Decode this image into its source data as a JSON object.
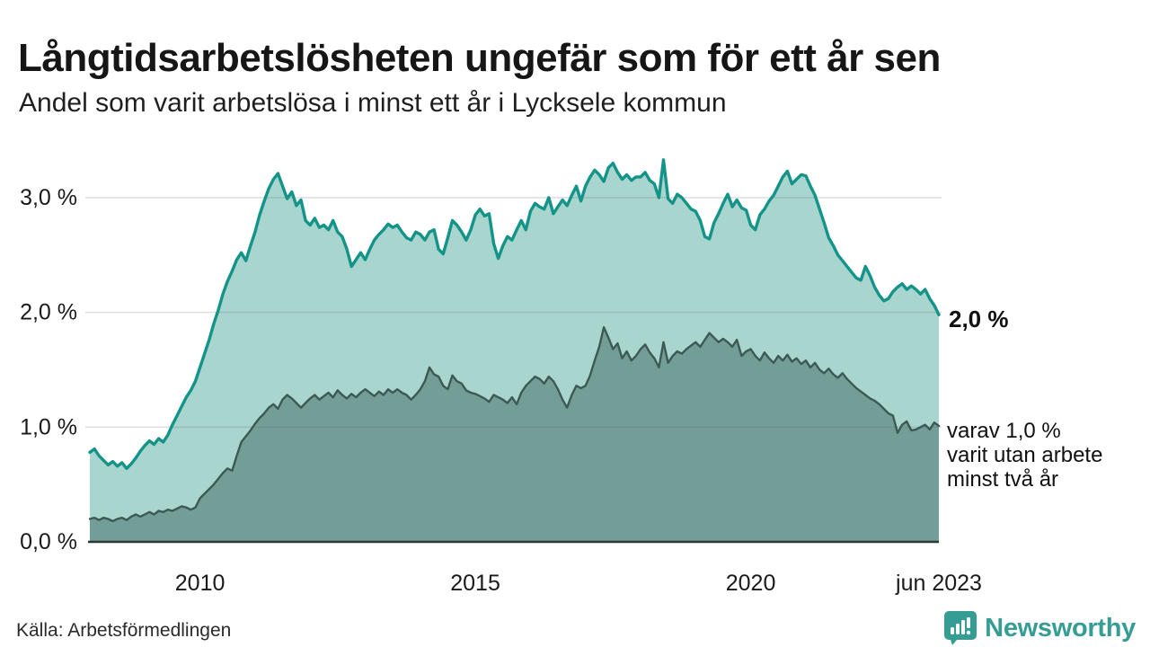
{
  "header": {
    "title": "Långtidsarbetslösheten ungefär som för ett år sen",
    "subtitle": "Andel som varit arbetslösa i minst ett år i Lycksele kommun"
  },
  "annotations": {
    "end_value_label": "2,0 %",
    "secondary_label": "varav 1,0 %\nvarit utan arbete\nminst två år"
  },
  "footer": {
    "source": "Källa: Arbetsförmedlingen",
    "brand": "Newsworthy"
  },
  "colors": {
    "line_primary": "#149489",
    "fill_primary": "#a8d5ce",
    "line_secondary": "#3d5954",
    "fill_secondary": "#739e97",
    "gridline": "rgba(100,112,122,0.22)",
    "baseline": "#2d3937",
    "tick_text": "#1a1a1a",
    "brand_teal": "#359d94"
  },
  "chart_data": {
    "type": "area",
    "frequency": "monthly",
    "x_range_estimate": [
      "2008-01",
      "2023-06"
    ],
    "ylim": [
      0,
      3.5
    ],
    "grid": true,
    "y_ticks": [
      {
        "value": 0,
        "label": "0,0 %"
      },
      {
        "value": 1,
        "label": "1,0 %"
      },
      {
        "value": 2,
        "label": "2,0 %"
      },
      {
        "value": 3,
        "label": "3,0 %"
      }
    ],
    "x_ticks": [
      {
        "t": 2010.0,
        "label": "2010"
      },
      {
        "t": 2015.0,
        "label": "2015"
      },
      {
        "t": 2020.0,
        "label": "2020"
      },
      {
        "t": 2023.417,
        "label": "jun 2023"
      }
    ],
    "series": [
      {
        "name": "Andel arbetslösa minst ett år",
        "end_value_pct": 2.0,
        "values": [
          0.78,
          0.81,
          0.75,
          0.71,
          0.67,
          0.7,
          0.66,
          0.69,
          0.64,
          0.68,
          0.73,
          0.79,
          0.84,
          0.88,
          0.85,
          0.9,
          0.87,
          0.93,
          1.02,
          1.1,
          1.18,
          1.26,
          1.32,
          1.4,
          1.52,
          1.64,
          1.76,
          1.9,
          2.02,
          2.16,
          2.27,
          2.36,
          2.46,
          2.52,
          2.45,
          2.58,
          2.7,
          2.85,
          2.97,
          3.08,
          3.16,
          3.21,
          3.1,
          2.99,
          3.05,
          2.93,
          2.98,
          2.8,
          2.76,
          2.82,
          2.74,
          2.76,
          2.72,
          2.8,
          2.7,
          2.66,
          2.55,
          2.4,
          2.46,
          2.52,
          2.46,
          2.55,
          2.63,
          2.68,
          2.72,
          2.77,
          2.74,
          2.76,
          2.7,
          2.65,
          2.63,
          2.7,
          2.68,
          2.63,
          2.7,
          2.72,
          2.55,
          2.51,
          2.65,
          2.8,
          2.76,
          2.7,
          2.63,
          2.72,
          2.85,
          2.9,
          2.84,
          2.86,
          2.6,
          2.47,
          2.58,
          2.66,
          2.63,
          2.72,
          2.8,
          2.72,
          2.88,
          2.95,
          2.92,
          2.9,
          3.0,
          2.86,
          2.92,
          2.98,
          2.93,
          3.02,
          3.1,
          2.97,
          3.1,
          3.18,
          3.24,
          3.2,
          3.14,
          3.26,
          3.3,
          3.22,
          3.16,
          3.2,
          3.15,
          3.18,
          3.18,
          3.22,
          3.15,
          3.12,
          3.0,
          3.33,
          2.99,
          2.95,
          3.03,
          3.0,
          2.95,
          2.9,
          2.88,
          2.8,
          2.66,
          2.64,
          2.78,
          2.86,
          2.95,
          3.03,
          2.92,
          2.98,
          2.91,
          2.89,
          2.76,
          2.72,
          2.85,
          2.9,
          2.97,
          3.02,
          3.1,
          3.18,
          3.23,
          3.12,
          3.16,
          3.2,
          3.19,
          3.1,
          3.02,
          2.9,
          2.78,
          2.65,
          2.58,
          2.5,
          2.45,
          2.4,
          2.35,
          2.3,
          2.28,
          2.4,
          2.32,
          2.22,
          2.15,
          2.1,
          2.12,
          2.18,
          2.22,
          2.25,
          2.2,
          2.23,
          2.2,
          2.16,
          2.2,
          2.12,
          2.06,
          1.98
        ]
      },
      {
        "name": "varav arbetslösa minst två år",
        "end_value_pct": 1.0,
        "values": [
          0.2,
          0.21,
          0.19,
          0.21,
          0.2,
          0.18,
          0.2,
          0.21,
          0.19,
          0.22,
          0.24,
          0.22,
          0.24,
          0.26,
          0.24,
          0.27,
          0.26,
          0.28,
          0.27,
          0.29,
          0.31,
          0.3,
          0.28,
          0.3,
          0.38,
          0.42,
          0.46,
          0.5,
          0.55,
          0.6,
          0.64,
          0.62,
          0.75,
          0.87,
          0.92,
          0.97,
          1.03,
          1.08,
          1.12,
          1.17,
          1.2,
          1.16,
          1.24,
          1.28,
          1.25,
          1.21,
          1.17,
          1.21,
          1.25,
          1.28,
          1.24,
          1.27,
          1.3,
          1.26,
          1.32,
          1.28,
          1.25,
          1.29,
          1.26,
          1.3,
          1.33,
          1.3,
          1.27,
          1.31,
          1.28,
          1.33,
          1.3,
          1.33,
          1.3,
          1.28,
          1.24,
          1.28,
          1.33,
          1.4,
          1.52,
          1.46,
          1.44,
          1.36,
          1.33,
          1.45,
          1.4,
          1.38,
          1.32,
          1.3,
          1.29,
          1.27,
          1.25,
          1.22,
          1.28,
          1.26,
          1.24,
          1.21,
          1.26,
          1.2,
          1.3,
          1.36,
          1.4,
          1.44,
          1.42,
          1.38,
          1.44,
          1.4,
          1.33,
          1.24,
          1.17,
          1.28,
          1.36,
          1.34,
          1.36,
          1.45,
          1.58,
          1.7,
          1.87,
          1.78,
          1.68,
          1.73,
          1.6,
          1.66,
          1.58,
          1.62,
          1.68,
          1.72,
          1.65,
          1.6,
          1.52,
          1.74,
          1.56,
          1.62,
          1.66,
          1.64,
          1.68,
          1.71,
          1.74,
          1.7,
          1.76,
          1.82,
          1.78,
          1.74,
          1.77,
          1.74,
          1.7,
          1.76,
          1.62,
          1.66,
          1.68,
          1.62,
          1.58,
          1.65,
          1.6,
          1.56,
          1.62,
          1.58,
          1.63,
          1.57,
          1.6,
          1.55,
          1.58,
          1.52,
          1.56,
          1.5,
          1.47,
          1.51,
          1.46,
          1.43,
          1.47,
          1.42,
          1.38,
          1.34,
          1.31,
          1.28,
          1.25,
          1.23,
          1.2,
          1.16,
          1.12,
          1.1,
          0.95,
          1.02,
          1.05,
          0.97,
          0.98,
          1.0,
          1.02,
          0.98,
          1.04,
          1.01
        ]
      }
    ]
  }
}
